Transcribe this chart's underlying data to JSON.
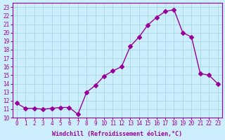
{
  "x": [
    0,
    1,
    2,
    3,
    4,
    5,
    6,
    7,
    8,
    9,
    10,
    11,
    12,
    13,
    14,
    15,
    16,
    17,
    18,
    19,
    20,
    21,
    22,
    23
  ],
  "y": [
    11.7,
    11.1,
    11.1,
    11.0,
    11.1,
    11.2,
    11.2,
    10.4,
    13.0,
    13.8,
    14.9,
    15.5,
    16.0,
    18.4,
    19.5,
    20.9,
    21.8,
    22.5,
    22.7,
    20.0,
    19.5,
    15.2,
    15.0,
    14.0
  ],
  "line_color": "#990099",
  "marker": "D",
  "marker_size": 3,
  "bg_color": "#cceeff",
  "grid_color": "#aadddd",
  "ylabel_ticks": [
    10,
    11,
    12,
    13,
    14,
    15,
    16,
    17,
    18,
    19,
    20,
    21,
    22,
    23
  ],
  "xlabel": "Windchill (Refroidissement éolien,°C)",
  "ylim": [
    10,
    23.5
  ],
  "xlim": [
    -0.5,
    23.5
  ]
}
